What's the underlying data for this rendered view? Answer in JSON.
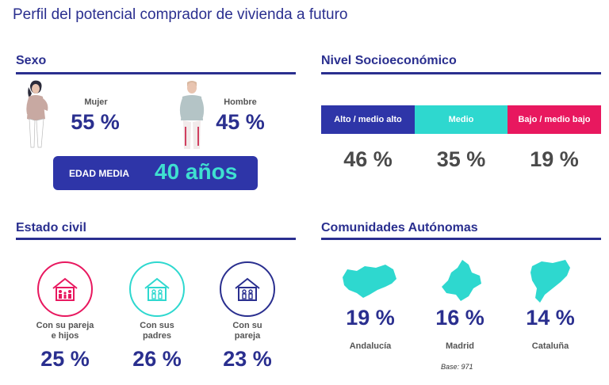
{
  "title": "Perfil del potencial comprador de vivienda a futuro",
  "colors": {
    "navy": "#2a2f8f",
    "high": "#2e35a8",
    "mid": "#2ed8cf",
    "low": "#e8185f",
    "teal": "#3fe0d0"
  },
  "sexo": {
    "heading": "Sexo",
    "mujer_label": "Mujer",
    "mujer_pct": "55 %",
    "hombre_label": "Hombre",
    "hombre_pct": "45 %",
    "edad_label": "EDAD MEDIA",
    "edad_value": "40 años"
  },
  "nse": {
    "heading": "Nivel Socioeconómico",
    "levels": [
      {
        "label": "Alto / medio alto",
        "pct": "46 %"
      },
      {
        "label": "Medio",
        "pct": "35 %"
      },
      {
        "label": "Bajo / medio bajo",
        "pct": "19 %"
      }
    ]
  },
  "estado": {
    "heading": "Estado civil",
    "items": [
      {
        "label_1": "Con su pareja",
        "label_2": "e hijos",
        "pct": "25 %"
      },
      {
        "label_1": "Con sus",
        "label_2": "padres",
        "pct": "26 %"
      },
      {
        "label_1": "Con su",
        "label_2": "pareja",
        "pct": "23 %"
      }
    ]
  },
  "ccaa": {
    "heading": "Comunidades Autónomas",
    "items": [
      {
        "name": "Andalucía",
        "pct": "19 %"
      },
      {
        "name": "Madrid",
        "pct": "16 %"
      },
      {
        "name": "Cataluña",
        "pct": "14 %"
      }
    ],
    "base": "Base: 971"
  },
  "chart_data": [
    {
      "type": "table",
      "categories": [
        "Mujer",
        "Hombre"
      ],
      "values": [
        55,
        45
      ]
    },
    {
      "type": "bar",
      "categories": [
        "Alto / medio alto",
        "Medio",
        "Bajo / medio bajo"
      ],
      "values": [
        46,
        35,
        19
      ]
    },
    {
      "type": "table",
      "categories": [
        "Con su pareja e hijos",
        "Con sus padres",
        "Con su pareja"
      ],
      "values": [
        25,
        26,
        23
      ]
    },
    {
      "type": "table",
      "categories": [
        "Andalucía",
        "Madrid",
        "Cataluña"
      ],
      "values": [
        19,
        16,
        14
      ]
    }
  ]
}
